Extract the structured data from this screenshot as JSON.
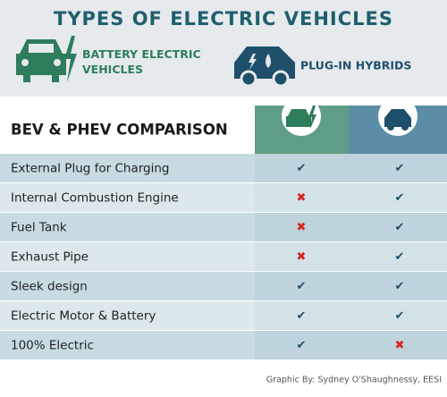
{
  "header": {
    "title": "TYPES OF ELECTRIC VEHICLES",
    "legend": [
      {
        "label": "BATTERY ELECTRIC VEHICLES",
        "color": "#2e7d5b"
      },
      {
        "label": "PLUG-IN HYBRIDS",
        "color": "#1e4f6b"
      }
    ]
  },
  "table": {
    "title": "BEV & PHEV COMPARISON",
    "rows": [
      [
        "External Plug for Charging",
        "✔",
        "✔"
      ],
      [
        "Internal Combustion Engine",
        "✖",
        "✔"
      ],
      [
        "Fuel Tank",
        "✖",
        "✔"
      ],
      [
        "Exhaust Pipe",
        "✖",
        "✔"
      ],
      [
        "Sleek design",
        "✔",
        "✔"
      ],
      [
        "Electric Motor & Battery",
        "✔",
        "✔"
      ],
      [
        "100% Electric",
        "✔",
        "✖"
      ]
    ]
  },
  "footer": {
    "credit": "Graphic By: Sydney O'Shaughnessy, EESI"
  }
}
